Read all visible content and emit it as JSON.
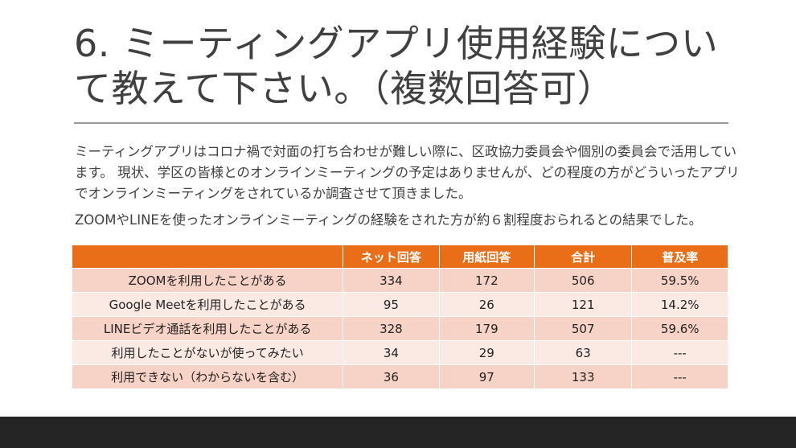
{
  "slide": {
    "title": "6. ミーティングアプリ使用経験について教えて下さい。（複数回答可）",
    "paragraph1": "ミーティングアプリはコロナ禍で対面の打ち合わせが難しい際に、区政協力委員会や個別の委員会で活用しています。  現状、学区の皆様とのオンラインミーティングの予定はありませんが、どの程度の方がどういったアプリでオンラインミーティングをされているか調査させて頂きました。",
    "paragraph2": "ZOOMやLINEを使ったオンラインミーティングの経験をされた方が約６割程度おられるとの結果でした。"
  },
  "table": {
    "headers": [
      "",
      "ネット回答",
      "用紙回答",
      "合計",
      "普及率"
    ],
    "rows": [
      {
        "label": "ZOOMを利用したことがある",
        "net": "334",
        "paper": "172",
        "total": "506",
        "rate": "59.5%"
      },
      {
        "label": "Google Meetを利用したことがある",
        "net": "95",
        "paper": "26",
        "total": "121",
        "rate": "14.2%"
      },
      {
        "label": "LINEビデオ通話を利用したことがある",
        "net": "328",
        "paper": "179",
        "total": "507",
        "rate": "59.6%"
      },
      {
        "label": "利用したことがないが使ってみたい",
        "net": "34",
        "paper": "29",
        "total": "63",
        "rate": "---"
      },
      {
        "label": "利用できない（わからないを含む）",
        "net": "36",
        "paper": "97",
        "total": "133",
        "rate": "---"
      }
    ]
  },
  "colors": {
    "header_orange": "#ea6d17",
    "row_dark": "#f7d2c6",
    "row_light": "#fbe9e3",
    "footer": "#252525"
  }
}
